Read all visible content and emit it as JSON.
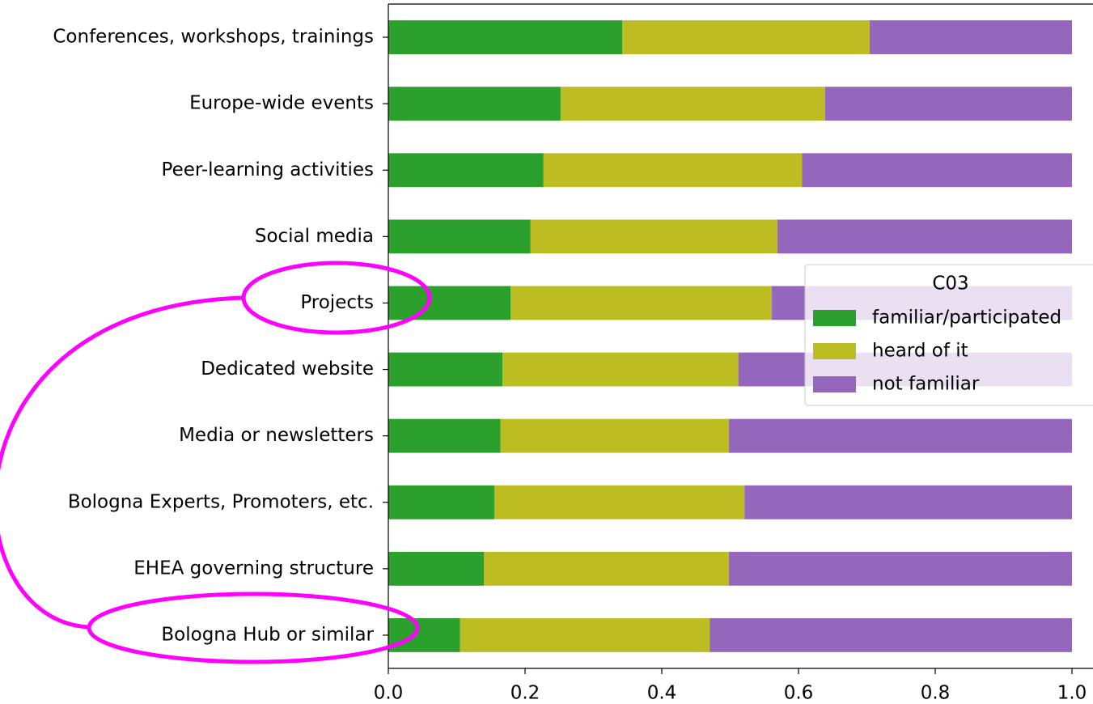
{
  "chart_data": {
    "type": "stacked-barh",
    "categories": [
      "Conferences, workshops, trainings",
      "Europe-wide events",
      "Peer-learning activities",
      "Social media",
      "Projects",
      "Dedicated website",
      "Media or newsletters",
      "Bologna Experts, Promoters, etc.",
      "EHEA governing structure",
      "Bologna Hub or similar"
    ],
    "series": [
      {
        "name": "familiar/participated",
        "color": "#2ca02c",
        "values": [
          0.342,
          0.252,
          0.227,
          0.208,
          0.179,
          0.167,
          0.164,
          0.155,
          0.14,
          0.105
        ]
      },
      {
        "name": "heard of it",
        "color": "#bcbd22",
        "values": [
          0.362,
          0.387,
          0.378,
          0.361,
          0.382,
          0.345,
          0.334,
          0.366,
          0.358,
          0.365
        ]
      },
      {
        "name": "not familiar",
        "color": "#9467bd",
        "values": [
          0.296,
          0.361,
          0.395,
          0.431,
          0.439,
          0.488,
          0.502,
          0.479,
          0.502,
          0.53
        ]
      }
    ],
    "legend_title": "C03",
    "legend": "center right",
    "xlim": [
      0,
      1
    ],
    "xticks": [
      {
        "value": 0,
        "label": "0.0"
      },
      0.2,
      0.4,
      0.6,
      0.8,
      {
        "value": 1,
        "label": "1.0"
      }
    ]
  }
}
